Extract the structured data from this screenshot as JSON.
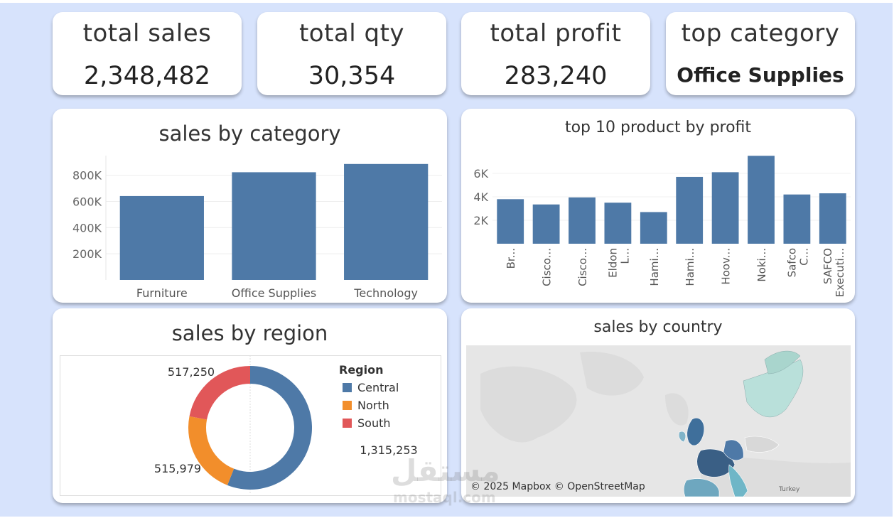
{
  "kpis": {
    "sales": {
      "title": "total sales",
      "value": "2,348,482"
    },
    "qty": {
      "title": "total qty",
      "value": "30,354"
    },
    "profit": {
      "title": "total profit",
      "value": "283,240"
    },
    "category": {
      "title": "top category",
      "value": "Office Supplies"
    }
  },
  "colors": {
    "bar": "#4e79a7",
    "central": "#4e79a7",
    "north": "#f28e2b",
    "south": "#e15759",
    "background": "#d7e3fc"
  },
  "chart_data": [
    {
      "type": "bar",
      "title": "sales by category",
      "categories": [
        "Furniture",
        "Office Supplies",
        "Technology"
      ],
      "values": [
        641000,
        823000,
        886000
      ],
      "y_ticks": [
        "200K",
        "400K",
        "600K",
        "800K"
      ],
      "ylim": [
        0,
        950000
      ]
    },
    {
      "type": "bar",
      "title": "top 10 product by profit",
      "categories": [
        "Br...",
        "Cisco...",
        "Cisco...",
        "Eldon L...",
        "Hami...",
        "Hami...",
        "Hoov...",
        "Noki...",
        "Safco C...",
        "SAFCO Executi..."
      ],
      "values": [
        3800,
        3350,
        3950,
        3500,
        2700,
        5700,
        6100,
        7500,
        4200,
        4300
      ],
      "y_ticks": [
        "2K",
        "4K",
        "6K"
      ],
      "ylim": [
        0,
        8000
      ]
    },
    {
      "type": "pie",
      "title": "sales by region",
      "legend_title": "Region",
      "categories": [
        "Central",
        "North",
        "South"
      ],
      "values": [
        1315253,
        515979,
        517250
      ],
      "labels": [
        "1,315,253",
        "515,979",
        "517,250"
      ]
    }
  ],
  "map": {
    "title": "sales by country",
    "attribution": "© 2025 Mapbox © OpenStreetMap",
    "label_turkey": "Turkey"
  },
  "watermark": {
    "arabic": "مستقل",
    "latin": "mostaql.com"
  }
}
